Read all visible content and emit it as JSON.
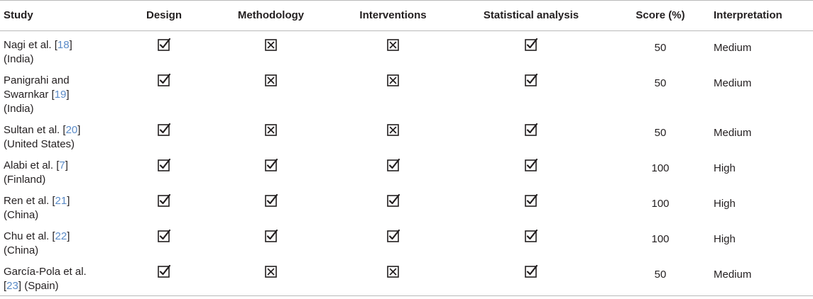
{
  "table": {
    "headers": {
      "study": "Study",
      "design": "Design",
      "methodology": "Methodology",
      "interventions": "Interventions",
      "statistical_analysis": "Statistical analysis",
      "score": "Score (%)",
      "interpretation": "Interpretation"
    },
    "rows": [
      {
        "study_lines": [
          {
            "pre": "Nagi et al. [",
            "ref": "18",
            "post": "]"
          },
          {
            "pre": "(India)",
            "ref": "",
            "post": ""
          }
        ],
        "design": "check",
        "methodology": "cross",
        "interventions": "cross",
        "statistical_analysis": "check",
        "score": "50",
        "interpretation": "Medium"
      },
      {
        "study_lines": [
          {
            "pre": "Panigrahi and",
            "ref": "",
            "post": ""
          },
          {
            "pre": "Swarnkar [",
            "ref": "19",
            "post": "]"
          },
          {
            "pre": "(India)",
            "ref": "",
            "post": ""
          }
        ],
        "design": "check",
        "methodology": "cross",
        "interventions": "cross",
        "statistical_analysis": "check",
        "score": "50",
        "interpretation": "Medium"
      },
      {
        "study_lines": [
          {
            "pre": "Sultan et al. [",
            "ref": "20",
            "post": "]"
          },
          {
            "pre": "(United States)",
            "ref": "",
            "post": ""
          }
        ],
        "design": "check",
        "methodology": "cross",
        "interventions": "cross",
        "statistical_analysis": "check",
        "score": "50",
        "interpretation": "Medium"
      },
      {
        "study_lines": [
          {
            "pre": "Alabi et al. [",
            "ref": "7",
            "post": "]"
          },
          {
            "pre": "(Finland)",
            "ref": "",
            "post": ""
          }
        ],
        "design": "check",
        "methodology": "check",
        "interventions": "check",
        "statistical_analysis": "check",
        "score": "100",
        "interpretation": "High"
      },
      {
        "study_lines": [
          {
            "pre": "Ren et al. [",
            "ref": "21",
            "post": "]"
          },
          {
            "pre": "(China)",
            "ref": "",
            "post": ""
          }
        ],
        "design": "check",
        "methodology": "check",
        "interventions": "check",
        "statistical_analysis": "check",
        "score": "100",
        "interpretation": "High"
      },
      {
        "study_lines": [
          {
            "pre": "Chu et al. [",
            "ref": "22",
            "post": "]"
          },
          {
            "pre": "(China)",
            "ref": "",
            "post": ""
          }
        ],
        "design": "check",
        "methodology": "check",
        "interventions": "check",
        "statistical_analysis": "check",
        "score": "100",
        "interpretation": "High"
      },
      {
        "study_lines": [
          {
            "pre": "García-Pola et al.",
            "ref": "",
            "post": ""
          },
          {
            "pre": "[",
            "ref": "23",
            "post": "] (Spain)"
          }
        ],
        "design": "check",
        "methodology": "cross",
        "interventions": "cross",
        "statistical_analysis": "check",
        "score": "50",
        "interpretation": "Medium"
      }
    ]
  },
  "colors": {
    "text": "#231f20",
    "reference_link": "#5b8bc7",
    "rule": "#b9b9b9"
  }
}
